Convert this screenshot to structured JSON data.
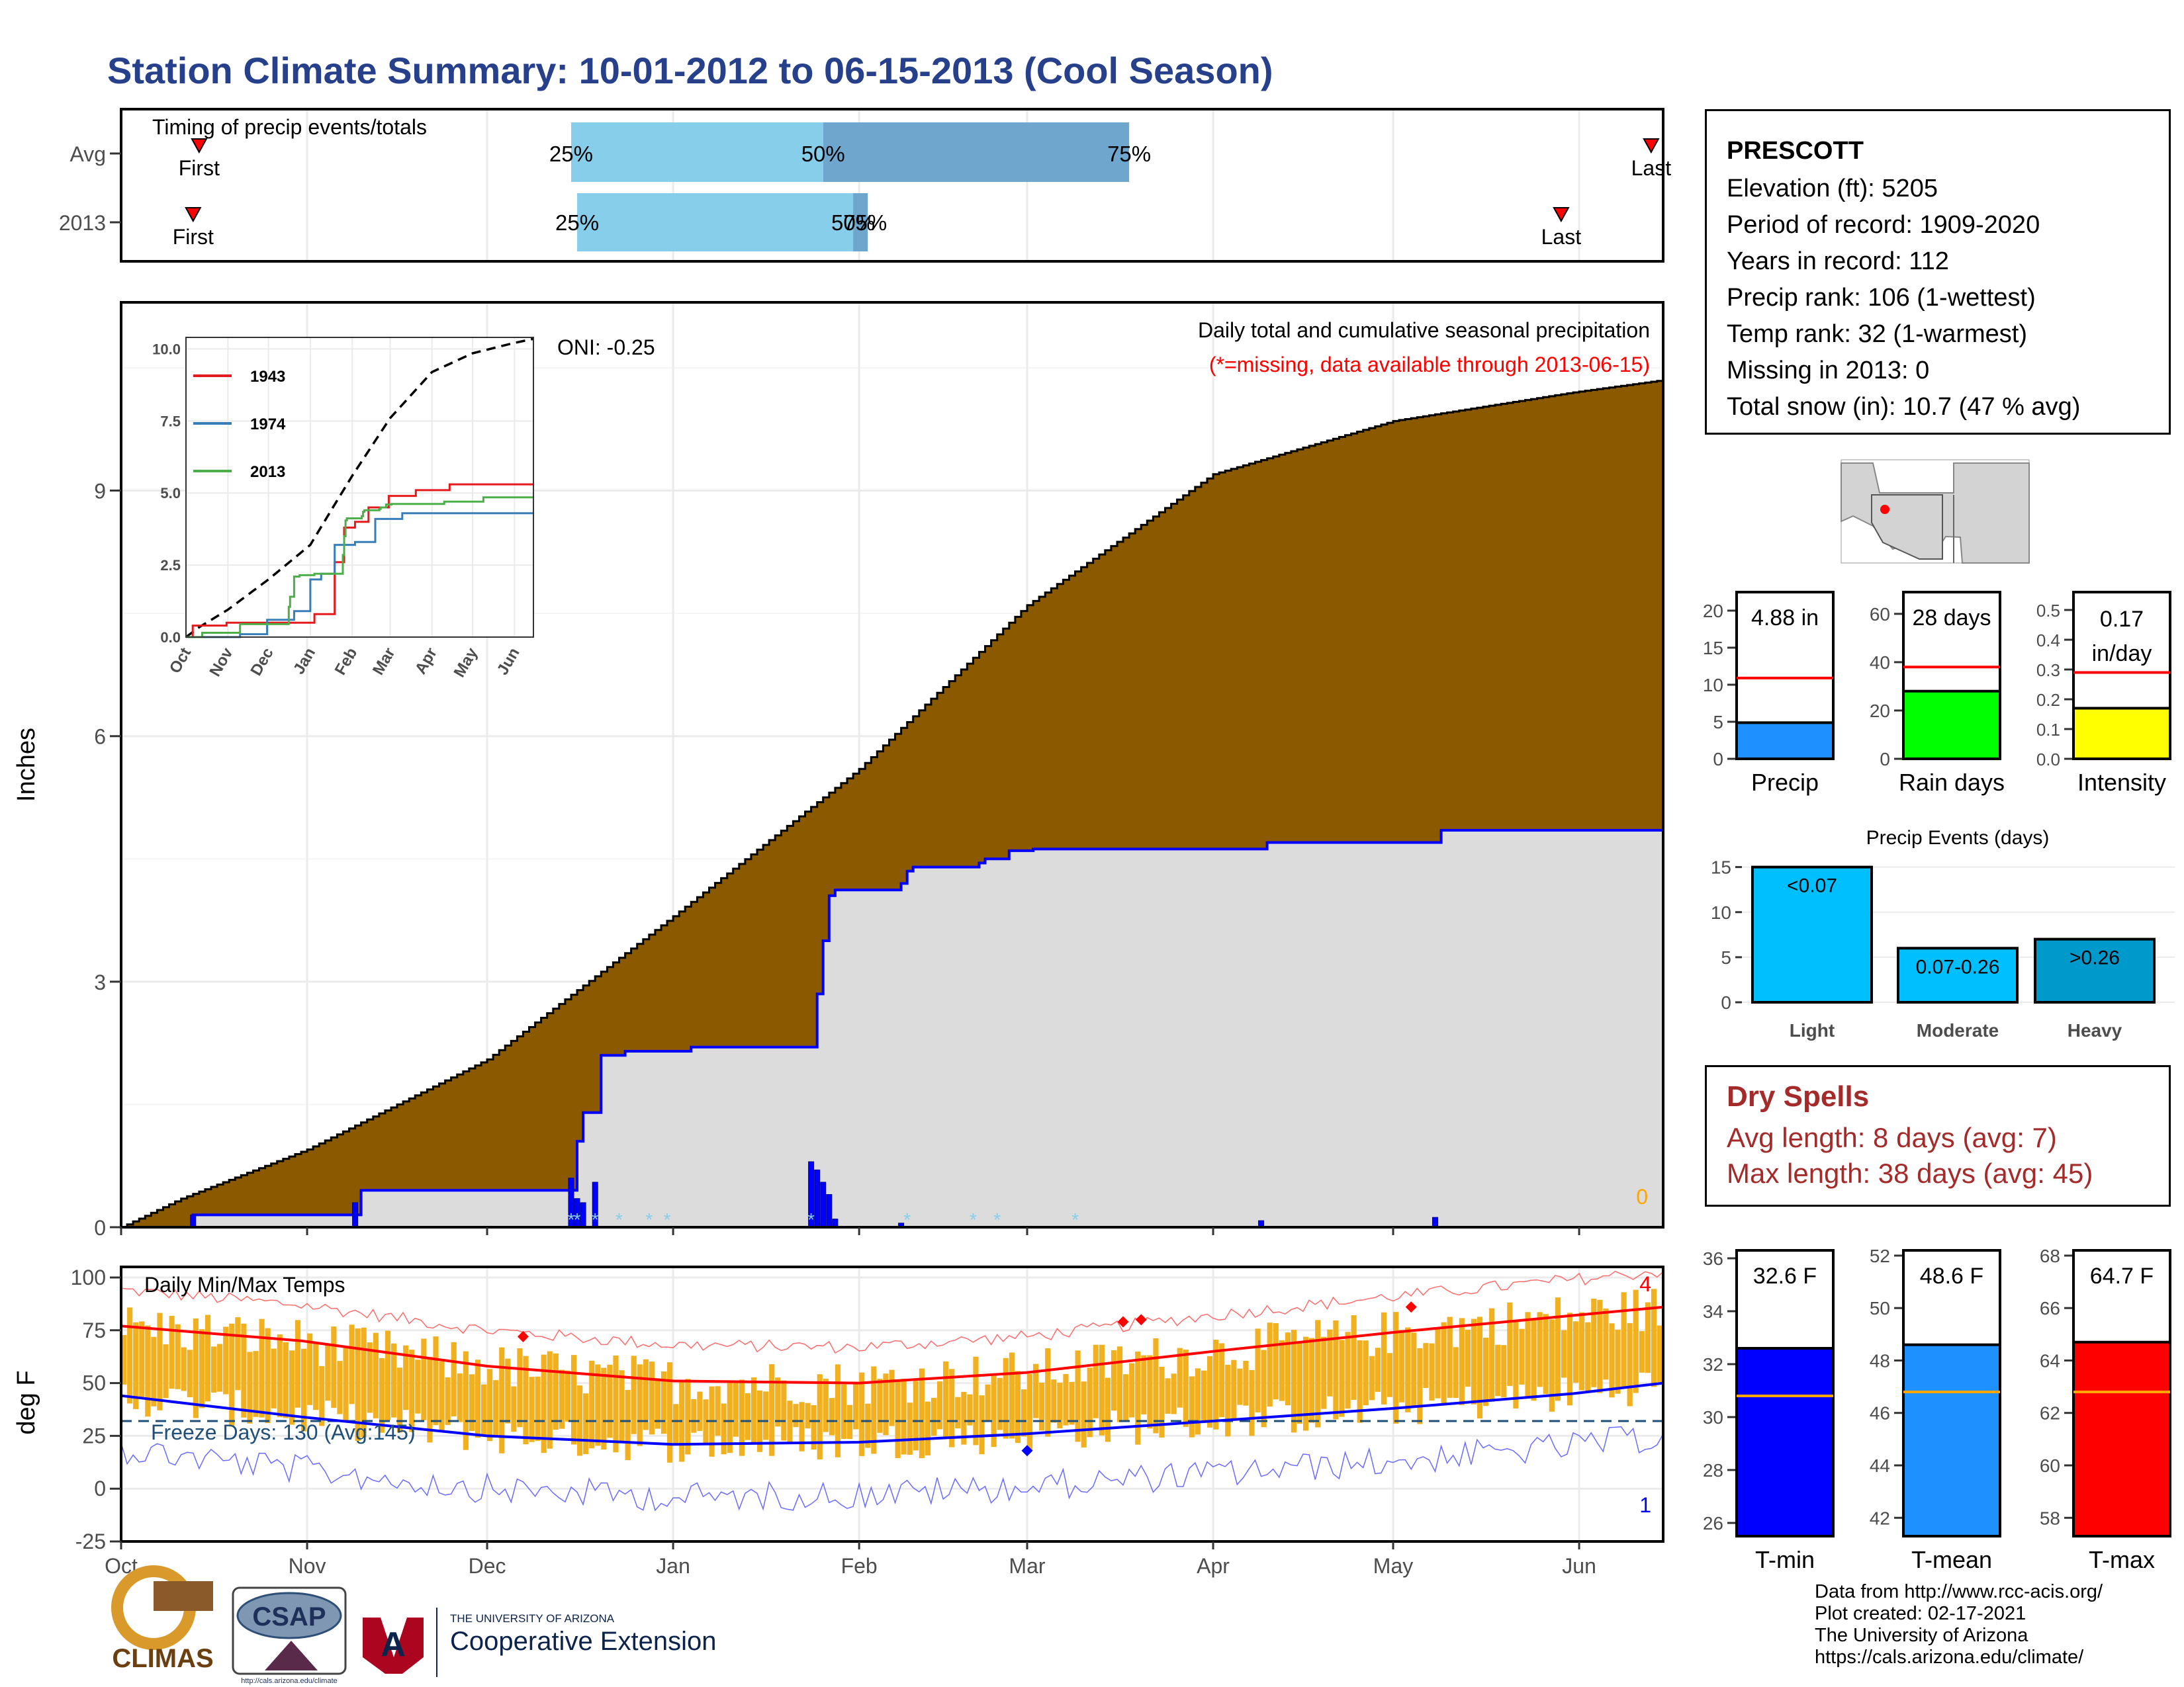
{
  "title": "Station Climate Summary: 10-01-2012 to 06-15-2013 (Cool Season)",
  "timing": {
    "label": "Timing of precip events/totals",
    "rows": [
      {
        "name": "Avg",
        "first_label": "First",
        "last_label": "Last",
        "p25": "25%",
        "p50": "50%",
        "p75": "75%"
      },
      {
        "name": "2013",
        "first_label": "First",
        "last_label": "Last",
        "p25": "25%",
        "p50": "50%",
        "p75": "75%"
      }
    ],
    "avg_first_day": 13,
    "avg_p25_day": 75,
    "avg_p50_day": 117,
    "avg_p75_day": 168,
    "avg_last_day": 255,
    "yr_first_day": 12,
    "yr_p25_day": 76,
    "yr_p50_day": 122,
    "yr_p75_day": 124,
    "yr_last_day": 240
  },
  "precip_panel": {
    "ylabel": "Inches",
    "yticks": [
      "0",
      "3",
      "6",
      "9"
    ],
    "xticks": [
      "Oct",
      "Nov",
      "Dec",
      "Jan",
      "Feb",
      "Mar",
      "Apr",
      "May",
      "Jun"
    ],
    "title_line1": "Daily total and cumulative seasonal precipitation",
    "title_line2": "(*=missing, data available through 2013-06-15)",
    "oni": "ONI: -0.25",
    "missing_count": "0",
    "inset": {
      "yticks": [
        "0.0",
        "2.5",
        "5.0",
        "7.5",
        "10.0"
      ],
      "xticks": [
        "Oct",
        "Nov",
        "Dec",
        "Jan",
        "Feb",
        "Mar",
        "Apr",
        "May",
        "Jun"
      ],
      "legend": [
        "1943",
        "1974",
        "2013"
      ]
    }
  },
  "temp_panel": {
    "ylabel": "deg F",
    "yticks": [
      "-25",
      "0",
      "25",
      "50",
      "75",
      "100"
    ],
    "xticks": [
      "Oct",
      "Nov",
      "Dec",
      "Jan",
      "Feb",
      "Mar",
      "Apr",
      "May",
      "Jun"
    ],
    "label": "Daily Min/Max Temps",
    "freeze": "Freeze Days: 130 (Avg:145)",
    "record_high_count": "4",
    "record_low_count": "1"
  },
  "station": {
    "name": "PRESCOTT",
    "lines": [
      "Elevation (ft): 5205",
      "Period of record: 1909-2020",
      "Years in record: 112",
      "Precip rank: 106 (1-wettest)",
      "Temp rank: 32 (1-warmest)",
      "Missing in 2013: 0",
      "Total snow (in): 10.7 (47 % avg)"
    ]
  },
  "bars_precip": [
    {
      "label": "Precip",
      "value_text": "4.88 in",
      "yticks": [
        "0",
        "5",
        "10",
        "15",
        "20"
      ],
      "color": "#1e90ff"
    },
    {
      "label": "Rain days",
      "value_text": "28 days",
      "yticks": [
        "0",
        "20",
        "40",
        "60"
      ],
      "color": "#00ff00"
    },
    {
      "label": "Intensity",
      "value_text": "0.17",
      "value_text2": "in/day",
      "yticks": [
        "0.0",
        "0.1",
        "0.2",
        "0.3",
        "0.4",
        "0.5"
      ],
      "color": "#ffff00"
    }
  ],
  "precip_events": {
    "title": "Precip Events (days)",
    "yticks": [
      "0",
      "5",
      "10",
      "15"
    ],
    "categories": [
      "Light",
      "Moderate",
      "Heavy"
    ],
    "bar_labels": [
      "<0.07",
      "0.07-0.26",
      ">0.26"
    ]
  },
  "dry_spells": {
    "title": "Dry Spells",
    "avg": "Avg length: 8 days (avg: 7)",
    "max": "Max length: 38 days (avg: 45)"
  },
  "temp_bars": [
    {
      "label": "T-min",
      "value_text": "32.6 F",
      "yticks": [
        "26",
        "28",
        "30",
        "32",
        "34",
        "36"
      ],
      "color": "#0000ff"
    },
    {
      "label": "T-mean",
      "value_text": "48.6 F",
      "yticks": [
        "42",
        "44",
        "46",
        "48",
        "50",
        "52"
      ],
      "color": "#1e90ff"
    },
    {
      "label": "T-max",
      "value_text": "64.7 F",
      "yticks": [
        "58",
        "60",
        "62",
        "64",
        "66",
        "68"
      ],
      "color": "#ff0000"
    }
  ],
  "footer": {
    "lines": [
      "Data from http://www.rcc-acis.org/",
      "Plot created: 02-17-2021",
      "The University of Arizona",
      "https://cals.arizona.edu/climate/"
    ],
    "logo_climas": "CLIMAS",
    "logo_csap": "CSAP",
    "logo_csap_url": "http://cals.arizona.edu/climate",
    "logo_ua_small": "THE UNIVERSITY OF ARIZONA",
    "logo_ua_big": "Cooperative Extension"
  },
  "chart_data": [
    {
      "type": "area",
      "title": "Daily total and cumulative seasonal precipitation",
      "ylabel": "Inches",
      "ylim": [
        0,
        11.3
      ],
      "x_unit": "days since Oct 1",
      "avg_cumulative": {
        "x": [
          0,
          10,
          31,
          61,
          92,
          123,
          151,
          182,
          212,
          242,
          257
        ],
        "y": [
          0,
          0.35,
          0.95,
          2.05,
          3.8,
          5.6,
          7.6,
          9.2,
          9.85,
          10.2,
          10.35
        ]
      },
      "cumulative_2013": {
        "x": [
          0,
          11,
          12,
          39,
          40,
          75,
          76,
          77,
          80,
          84,
          95,
          115,
          116,
          117,
          118,
          119,
          130,
          131,
          132,
          143,
          144,
          148,
          152,
          190,
          191,
          219,
          220,
          257
        ],
        "y": [
          0,
          0,
          0.15,
          0.15,
          0.45,
          0.45,
          1.05,
          1.4,
          2.1,
          2.15,
          2.2,
          2.2,
          2.85,
          3.5,
          4.05,
          4.12,
          4.2,
          4.35,
          4.4,
          4.45,
          4.5,
          4.6,
          4.62,
          4.62,
          4.7,
          4.7,
          4.85,
          4.85
        ]
      }
    },
    {
      "type": "line",
      "title": "Daily Min/Max Temps",
      "ylabel": "deg F",
      "ylim": [
        -25,
        105
      ],
      "avg_max": {
        "x": [
          0,
          30,
          61,
          92,
          123,
          151,
          182,
          212,
          242,
          257
        ],
        "y": [
          77,
          70,
          58,
          51,
          50,
          55,
          65,
          74,
          82,
          86
        ]
      },
      "avg_min": {
        "x": [
          0,
          30,
          61,
          92,
          123,
          151,
          182,
          212,
          242,
          257
        ],
        "y": [
          44,
          34,
          25,
          21,
          22,
          26,
          32,
          38,
          45,
          50
        ]
      },
      "freeze_threshold": 32
    },
    {
      "type": "bar",
      "title": "Precip Events (days)",
      "categories": [
        "Light",
        "Moderate",
        "Heavy"
      ],
      "values": [
        15,
        6,
        7
      ]
    }
  ]
}
